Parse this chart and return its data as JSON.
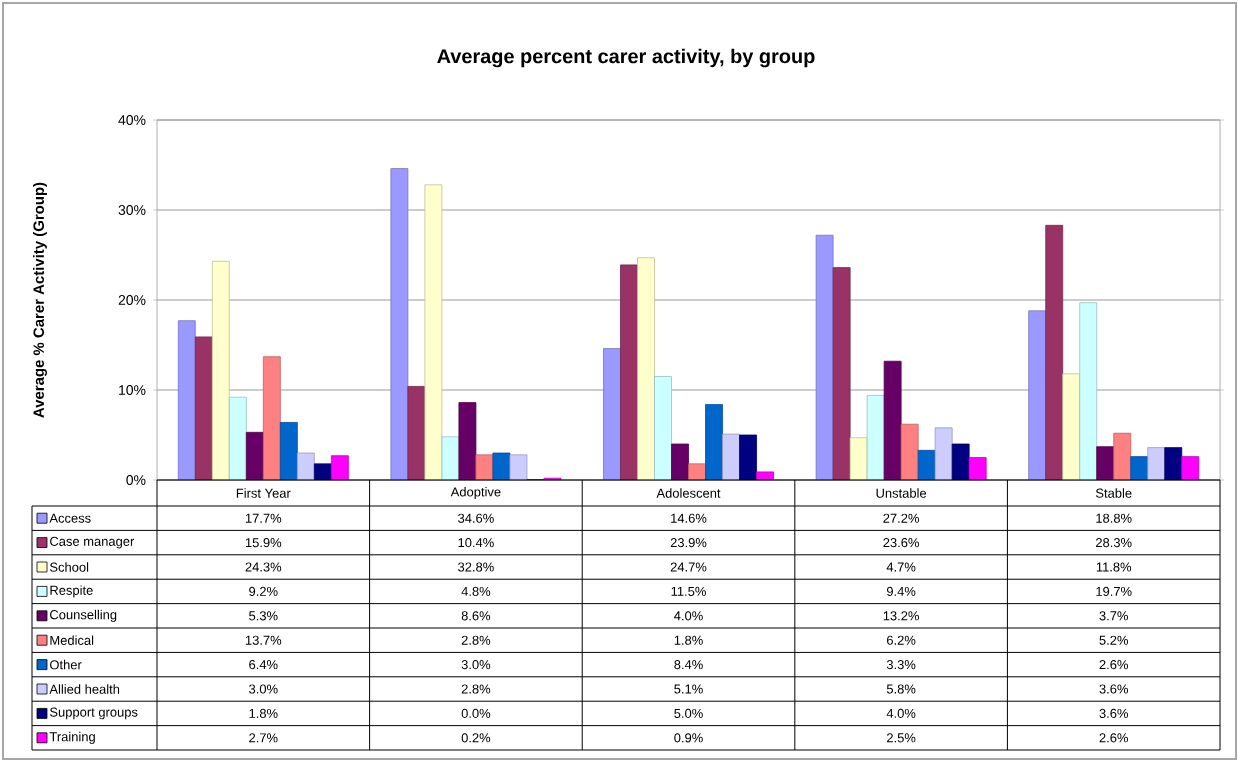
{
  "chart_data": {
    "type": "bar",
    "title": "Average percent carer activity, by group",
    "ylabel": "Average % Carer Activity (Group)",
    "categories": [
      "First Year",
      "Adoptive",
      "Adolescent",
      "Unstable",
      "Stable"
    ],
    "ylim": [
      0,
      40
    ],
    "yticks": [
      {
        "value": 0,
        "label": "0%"
      },
      {
        "value": 10,
        "label": "10%"
      },
      {
        "value": 20,
        "label": "20%"
      },
      {
        "value": 30,
        "label": "30%"
      },
      {
        "value": 40,
        "label": "40%"
      }
    ],
    "grid": "y",
    "legend": "bottom left",
    "series": [
      {
        "name": "Access",
        "color": "#9999ff",
        "values": [
          17.7,
          34.6,
          14.6,
          27.2,
          18.8
        ],
        "value_labels": [
          "17.7%",
          "34.6%",
          "14.6%",
          "27.2%",
          "18.8%"
        ]
      },
      {
        "name": "Case manager",
        "color": "#993366",
        "values": [
          15.9,
          10.4,
          23.9,
          23.6,
          28.3
        ],
        "value_labels": [
          "15.9%",
          "10.4%",
          "23.9%",
          "23.6%",
          "28.3%"
        ]
      },
      {
        "name": "School",
        "color": "#ffffcc",
        "values": [
          24.3,
          32.8,
          24.7,
          4.7,
          11.8
        ],
        "value_labels": [
          "24.3%",
          "32.8%",
          "24.7%",
          "4.7%",
          "11.8%"
        ]
      },
      {
        "name": "Respite",
        "color": "#ccffff",
        "values": [
          9.2,
          4.8,
          11.5,
          9.4,
          19.7
        ],
        "value_labels": [
          "9.2%",
          "4.8%",
          "11.5%",
          "9.4%",
          "19.7%"
        ]
      },
      {
        "name": "Counselling",
        "color": "#660066",
        "values": [
          5.3,
          8.6,
          4.0,
          13.2,
          3.7
        ],
        "value_labels": [
          "5.3%",
          "8.6%",
          "4.0%",
          "13.2%",
          "3.7%"
        ]
      },
      {
        "name": "Medical",
        "color": "#ff8080",
        "values": [
          13.7,
          2.8,
          1.8,
          6.2,
          5.2
        ],
        "value_labels": [
          "13.7%",
          "2.8%",
          "1.8%",
          "6.2%",
          "5.2%"
        ]
      },
      {
        "name": "Other",
        "color": "#0066cc",
        "values": [
          6.4,
          3.0,
          8.4,
          3.3,
          2.6
        ],
        "value_labels": [
          "6.4%",
          "3.0%",
          "8.4%",
          "3.3%",
          "2.6%"
        ]
      },
      {
        "name": "Allied health",
        "color": "#ccccff",
        "values": [
          3.0,
          2.8,
          5.1,
          5.8,
          3.6
        ],
        "value_labels": [
          "3.0%",
          "2.8%",
          "5.1%",
          "5.8%",
          "3.6%"
        ]
      },
      {
        "name": "Support groups",
        "color": "#000080",
        "values": [
          1.8,
          0.0,
          5.0,
          4.0,
          3.6
        ],
        "value_labels": [
          "1.8%",
          "0.0%",
          "5.0%",
          "4.0%",
          "3.6%"
        ]
      },
      {
        "name": "Training",
        "color": "#ff00ff",
        "values": [
          2.7,
          0.2,
          0.9,
          2.5,
          2.6
        ],
        "value_labels": [
          "2.7%",
          "0.2%",
          "0.9%",
          "2.5%",
          "2.6%"
        ]
      }
    ]
  }
}
